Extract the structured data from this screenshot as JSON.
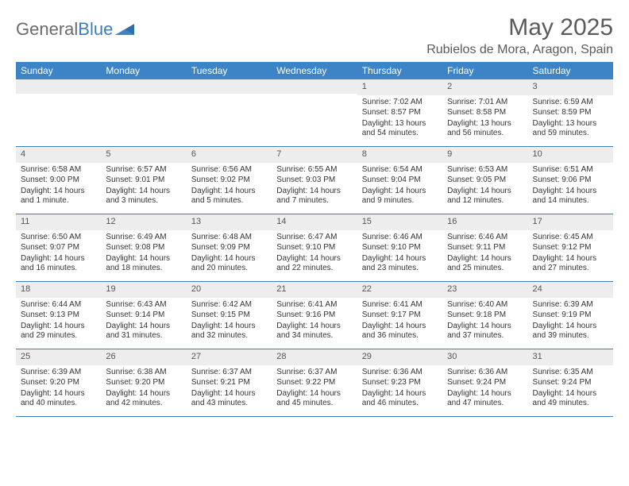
{
  "logo": {
    "part1": "General",
    "part2": "Blue"
  },
  "title": "May 2025",
  "subtitle": "Rubielos de Mora, Aragon, Spain",
  "weekdays": [
    "Sunday",
    "Monday",
    "Tuesday",
    "Wednesday",
    "Thursday",
    "Friday",
    "Saturday"
  ],
  "colors": {
    "header_bg": "#3c84c6",
    "header_text": "#ffffff",
    "daynum_bg": "#ededed",
    "border": "#3c7fb8",
    "text": "#333333",
    "title_text": "#5a5a5a",
    "logo_gray": "#6b6b6b",
    "logo_blue": "#3c7fb8"
  },
  "weeks": [
    [
      {
        "n": "",
        "sr": "",
        "ss": "",
        "dl": ""
      },
      {
        "n": "",
        "sr": "",
        "ss": "",
        "dl": ""
      },
      {
        "n": "",
        "sr": "",
        "ss": "",
        "dl": ""
      },
      {
        "n": "",
        "sr": "",
        "ss": "",
        "dl": ""
      },
      {
        "n": "1",
        "sr": "Sunrise: 7:02 AM",
        "ss": "Sunset: 8:57 PM",
        "dl": "Daylight: 13 hours and 54 minutes."
      },
      {
        "n": "2",
        "sr": "Sunrise: 7:01 AM",
        "ss": "Sunset: 8:58 PM",
        "dl": "Daylight: 13 hours and 56 minutes."
      },
      {
        "n": "3",
        "sr": "Sunrise: 6:59 AM",
        "ss": "Sunset: 8:59 PM",
        "dl": "Daylight: 13 hours and 59 minutes."
      }
    ],
    [
      {
        "n": "4",
        "sr": "Sunrise: 6:58 AM",
        "ss": "Sunset: 9:00 PM",
        "dl": "Daylight: 14 hours and 1 minute."
      },
      {
        "n": "5",
        "sr": "Sunrise: 6:57 AM",
        "ss": "Sunset: 9:01 PM",
        "dl": "Daylight: 14 hours and 3 minutes."
      },
      {
        "n": "6",
        "sr": "Sunrise: 6:56 AM",
        "ss": "Sunset: 9:02 PM",
        "dl": "Daylight: 14 hours and 5 minutes."
      },
      {
        "n": "7",
        "sr": "Sunrise: 6:55 AM",
        "ss": "Sunset: 9:03 PM",
        "dl": "Daylight: 14 hours and 7 minutes."
      },
      {
        "n": "8",
        "sr": "Sunrise: 6:54 AM",
        "ss": "Sunset: 9:04 PM",
        "dl": "Daylight: 14 hours and 9 minutes."
      },
      {
        "n": "9",
        "sr": "Sunrise: 6:53 AM",
        "ss": "Sunset: 9:05 PM",
        "dl": "Daylight: 14 hours and 12 minutes."
      },
      {
        "n": "10",
        "sr": "Sunrise: 6:51 AM",
        "ss": "Sunset: 9:06 PM",
        "dl": "Daylight: 14 hours and 14 minutes."
      }
    ],
    [
      {
        "n": "11",
        "sr": "Sunrise: 6:50 AM",
        "ss": "Sunset: 9:07 PM",
        "dl": "Daylight: 14 hours and 16 minutes."
      },
      {
        "n": "12",
        "sr": "Sunrise: 6:49 AM",
        "ss": "Sunset: 9:08 PM",
        "dl": "Daylight: 14 hours and 18 minutes."
      },
      {
        "n": "13",
        "sr": "Sunrise: 6:48 AM",
        "ss": "Sunset: 9:09 PM",
        "dl": "Daylight: 14 hours and 20 minutes."
      },
      {
        "n": "14",
        "sr": "Sunrise: 6:47 AM",
        "ss": "Sunset: 9:10 PM",
        "dl": "Daylight: 14 hours and 22 minutes."
      },
      {
        "n": "15",
        "sr": "Sunrise: 6:46 AM",
        "ss": "Sunset: 9:10 PM",
        "dl": "Daylight: 14 hours and 23 minutes."
      },
      {
        "n": "16",
        "sr": "Sunrise: 6:46 AM",
        "ss": "Sunset: 9:11 PM",
        "dl": "Daylight: 14 hours and 25 minutes."
      },
      {
        "n": "17",
        "sr": "Sunrise: 6:45 AM",
        "ss": "Sunset: 9:12 PM",
        "dl": "Daylight: 14 hours and 27 minutes."
      }
    ],
    [
      {
        "n": "18",
        "sr": "Sunrise: 6:44 AM",
        "ss": "Sunset: 9:13 PM",
        "dl": "Daylight: 14 hours and 29 minutes."
      },
      {
        "n": "19",
        "sr": "Sunrise: 6:43 AM",
        "ss": "Sunset: 9:14 PM",
        "dl": "Daylight: 14 hours and 31 minutes."
      },
      {
        "n": "20",
        "sr": "Sunrise: 6:42 AM",
        "ss": "Sunset: 9:15 PM",
        "dl": "Daylight: 14 hours and 32 minutes."
      },
      {
        "n": "21",
        "sr": "Sunrise: 6:41 AM",
        "ss": "Sunset: 9:16 PM",
        "dl": "Daylight: 14 hours and 34 minutes."
      },
      {
        "n": "22",
        "sr": "Sunrise: 6:41 AM",
        "ss": "Sunset: 9:17 PM",
        "dl": "Daylight: 14 hours and 36 minutes."
      },
      {
        "n": "23",
        "sr": "Sunrise: 6:40 AM",
        "ss": "Sunset: 9:18 PM",
        "dl": "Daylight: 14 hours and 37 minutes."
      },
      {
        "n": "24",
        "sr": "Sunrise: 6:39 AM",
        "ss": "Sunset: 9:19 PM",
        "dl": "Daylight: 14 hours and 39 minutes."
      }
    ],
    [
      {
        "n": "25",
        "sr": "Sunrise: 6:39 AM",
        "ss": "Sunset: 9:20 PM",
        "dl": "Daylight: 14 hours and 40 minutes."
      },
      {
        "n": "26",
        "sr": "Sunrise: 6:38 AM",
        "ss": "Sunset: 9:20 PM",
        "dl": "Daylight: 14 hours and 42 minutes."
      },
      {
        "n": "27",
        "sr": "Sunrise: 6:37 AM",
        "ss": "Sunset: 9:21 PM",
        "dl": "Daylight: 14 hours and 43 minutes."
      },
      {
        "n": "28",
        "sr": "Sunrise: 6:37 AM",
        "ss": "Sunset: 9:22 PM",
        "dl": "Daylight: 14 hours and 45 minutes."
      },
      {
        "n": "29",
        "sr": "Sunrise: 6:36 AM",
        "ss": "Sunset: 9:23 PM",
        "dl": "Daylight: 14 hours and 46 minutes."
      },
      {
        "n": "30",
        "sr": "Sunrise: 6:36 AM",
        "ss": "Sunset: 9:24 PM",
        "dl": "Daylight: 14 hours and 47 minutes."
      },
      {
        "n": "31",
        "sr": "Sunrise: 6:35 AM",
        "ss": "Sunset: 9:24 PM",
        "dl": "Daylight: 14 hours and 49 minutes."
      }
    ]
  ]
}
